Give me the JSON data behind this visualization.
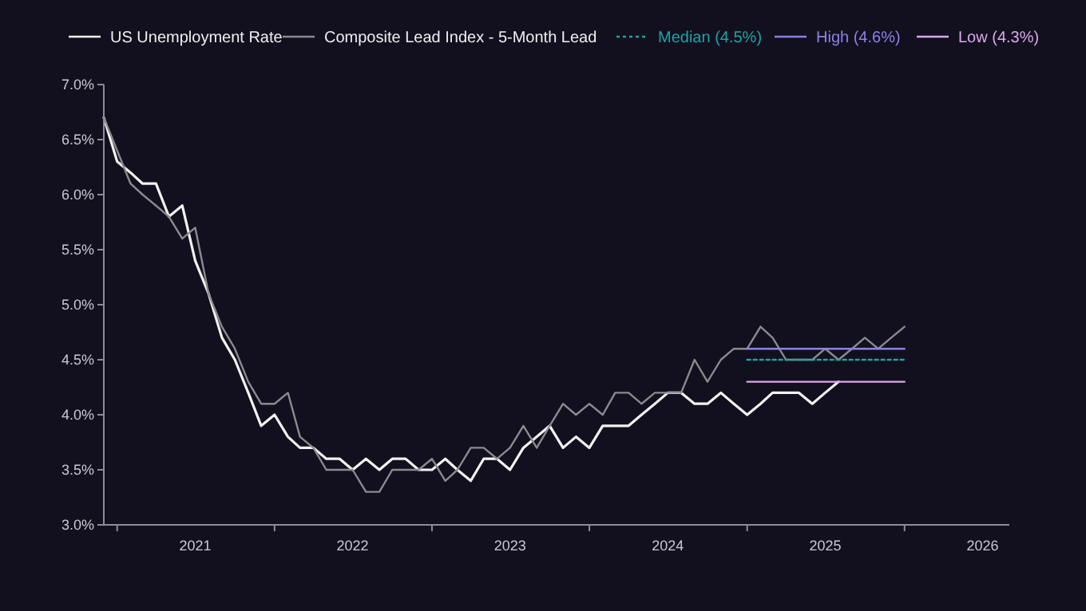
{
  "chart_data": {
    "type": "line",
    "x": [
      "2020-12",
      "2021-01",
      "2021-02",
      "2021-03",
      "2021-04",
      "2021-05",
      "2021-06",
      "2021-07",
      "2021-08",
      "2021-09",
      "2021-10",
      "2021-11",
      "2021-12",
      "2022-01",
      "2022-02",
      "2022-03",
      "2022-04",
      "2022-05",
      "2022-06",
      "2022-07",
      "2022-08",
      "2022-09",
      "2022-10",
      "2022-11",
      "2022-12",
      "2023-01",
      "2023-02",
      "2023-03",
      "2023-04",
      "2023-05",
      "2023-06",
      "2023-07",
      "2023-08",
      "2023-09",
      "2023-10",
      "2023-11",
      "2023-12",
      "2024-01",
      "2024-02",
      "2024-03",
      "2024-04",
      "2024-05",
      "2024-06",
      "2024-07",
      "2024-08",
      "2024-09",
      "2024-10",
      "2024-11",
      "2024-12",
      "2025-01",
      "2025-02",
      "2025-03",
      "2025-04",
      "2025-05",
      "2025-06",
      "2025-07",
      "2025-08"
    ],
    "series": [
      {
        "name": "US Unemployment Rate",
        "color": "#f2f2f2",
        "values": [
          6.7,
          6.3,
          6.2,
          6.1,
          6.1,
          5.8,
          5.9,
          5.4,
          5.1,
          4.7,
          4.5,
          4.2,
          3.9,
          4.0,
          3.8,
          3.7,
          3.7,
          3.6,
          3.6,
          3.5,
          3.6,
          3.5,
          3.6,
          3.6,
          3.5,
          3.5,
          3.6,
          3.5,
          3.4,
          3.6,
          3.6,
          3.5,
          3.7,
          3.8,
          3.9,
          3.7,
          3.8,
          3.7,
          3.9,
          3.9,
          3.9,
          4.0,
          4.1,
          4.2,
          4.2,
          4.1,
          4.1,
          4.2,
          4.1,
          4.0,
          4.1,
          4.2,
          4.2,
          4.2,
          4.1,
          4.2,
          4.3
        ]
      },
      {
        "name": "Composite Lead Index - 5-Month Lead",
        "color": "#8a8a8f",
        "x": [
          "2020-12",
          "2021-01",
          "2021-02",
          "2021-03",
          "2021-04",
          "2021-05",
          "2021-06",
          "2021-07",
          "2021-08",
          "2021-09",
          "2021-10",
          "2021-11",
          "2021-12",
          "2022-01",
          "2022-02",
          "2022-03",
          "2022-04",
          "2022-05",
          "2022-06",
          "2022-07",
          "2022-08",
          "2022-09",
          "2022-10",
          "2022-11",
          "2022-12",
          "2023-01",
          "2023-02",
          "2023-03",
          "2023-04",
          "2023-05",
          "2023-06",
          "2023-07",
          "2023-08",
          "2023-09",
          "2023-10",
          "2023-11",
          "2023-12",
          "2024-01",
          "2024-02",
          "2024-03",
          "2024-04",
          "2024-05",
          "2024-06",
          "2024-07",
          "2024-08",
          "2024-09",
          "2024-10",
          "2024-11",
          "2024-12",
          "2025-01",
          "2025-02",
          "2025-03",
          "2025-04",
          "2025-05",
          "2025-06",
          "2025-07",
          "2025-08",
          "2025-09",
          "2025-10",
          "2025-11",
          "2025-12",
          "2026-01"
        ],
        "values": [
          6.7,
          6.4,
          6.1,
          6.0,
          5.9,
          5.8,
          5.6,
          5.7,
          5.1,
          4.8,
          4.6,
          4.3,
          4.1,
          4.1,
          4.2,
          3.8,
          3.7,
          3.5,
          3.5,
          3.5,
          3.3,
          3.3,
          3.5,
          3.5,
          3.5,
          3.6,
          3.4,
          3.5,
          3.7,
          3.7,
          3.6,
          3.7,
          3.9,
          3.7,
          3.9,
          4.1,
          4.0,
          4.1,
          4.0,
          4.2,
          4.2,
          4.1,
          4.2,
          4.2,
          4.2,
          4.5,
          4.3,
          4.5,
          4.6,
          4.6,
          4.8,
          4.7,
          4.5,
          4.5,
          4.5,
          4.6,
          4.5,
          4.6,
          4.7,
          4.6,
          4.7,
          4.8
        ]
      },
      {
        "name": "Median (4.5%)",
        "color": "#1fa3a3",
        "line_style": "dotted",
        "x": [
          "2025-01",
          "2026-01"
        ],
        "values": [
          4.5,
          4.5
        ]
      },
      {
        "name": "High (4.6%)",
        "color": "#8c80e6",
        "x": [
          "2025-01",
          "2026-01"
        ],
        "values": [
          4.6,
          4.6
        ]
      },
      {
        "name": "Low (4.3%)",
        "color": "#d9a8ea",
        "x": [
          "2025-01",
          "2026-01"
        ],
        "values": [
          4.3,
          4.3
        ]
      }
    ],
    "xlim": [
      "2020-12-01",
      "2026-09-01"
    ],
    "xticks": [
      {
        "value": "2021-01-01",
        "label": null
      },
      {
        "value": "2021-07-01",
        "label": "2021"
      },
      {
        "value": "2022-01-01",
        "label": null
      },
      {
        "value": "2022-07-01",
        "label": "2022"
      },
      {
        "value": "2023-01-01",
        "label": null
      },
      {
        "value": "2023-07-01",
        "label": "2023"
      },
      {
        "value": "2024-01-01",
        "label": null
      },
      {
        "value": "2024-07-01",
        "label": "2024"
      },
      {
        "value": "2025-01-01",
        "label": null
      },
      {
        "value": "2025-07-01",
        "label": "2025"
      },
      {
        "value": "2026-01-01",
        "label": null
      },
      {
        "value": "2026-07-01",
        "label": "2026"
      }
    ],
    "ylim": [
      3.0,
      7.0
    ],
    "yticks": [
      {
        "value": 3.0,
        "label": "3.0%"
      },
      {
        "value": 3.5,
        "label": "3.5%"
      },
      {
        "value": 4.0,
        "label": "4.0%"
      },
      {
        "value": 4.5,
        "label": "4.5%"
      },
      {
        "value": 5.0,
        "label": "5.0%"
      },
      {
        "value": 5.5,
        "label": "5.5%"
      },
      {
        "value": 6.0,
        "label": "6.0%"
      },
      {
        "value": 6.5,
        "label": "6.5%"
      },
      {
        "value": 7.0,
        "label": "7.0%"
      }
    ],
    "grid": false,
    "legend": "top",
    "marker": "none"
  }
}
